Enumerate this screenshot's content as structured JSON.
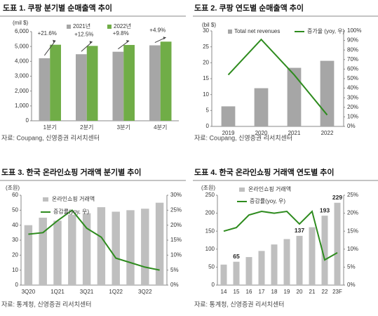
{
  "chart_data": [
    {
      "type": "bar",
      "title": "도표 1. 쿠팡 분기별 순매출액 추이",
      "source": "자료: Coupang, 신영증권 리서치센터",
      "y_label": "(mil $)",
      "legend": "top",
      "categories": [
        "1분기",
        "2분기",
        "3분기",
        "4분기"
      ],
      "series": [
        {
          "name": "2021년",
          "type": "bar",
          "color": "#a6a6a6",
          "values": [
            4207,
            4478,
            4645,
            5077
          ]
        },
        {
          "name": "2022년",
          "type": "bar",
          "color": "#70ad47",
          "values": [
            5117,
            5038,
            5101,
            5325
          ]
        }
      ],
      "annotations": [
        "+21.6%",
        "+12.5%",
        "+9.8%",
        "+4.9%"
      ],
      "ylim": [
        0,
        6000
      ],
      "yticks": [
        0,
        {
          "value": 1000,
          "label": "1,000"
        },
        {
          "value": 2000,
          "label": "2,000"
        },
        {
          "value": 3000,
          "label": "3,000"
        },
        {
          "value": 4000,
          "label": "4,000"
        },
        {
          "value": 5000,
          "label": "5,000"
        },
        {
          "value": 6000,
          "label": "6,000"
        }
      ]
    },
    {
      "type": "combo",
      "title": "도표 2. 쿠팡 연도별 순매출액 추이",
      "source": "자료: Coupang, 신영증권 리서치센터",
      "y_label": "(bil $)",
      "legend": "top",
      "categories": [
        "2019",
        "2020",
        "2021",
        "2022"
      ],
      "series": [
        {
          "name": "Total net revenues",
          "type": "bar",
          "color": "#a6a6a6",
          "values": [
            6.3,
            12.0,
            18.4,
            20.6
          ]
        },
        {
          "name": "증가율 (yoy, 우)",
          "type": "line",
          "axis": "y2",
          "color": "#2e8b1e",
          "values": [
            54,
            91,
            54,
            12
          ]
        }
      ],
      "ylim": [
        0,
        30
      ],
      "yticks": [
        0,
        5,
        10,
        15,
        20,
        25,
        30
      ],
      "y2lim": [
        0,
        100
      ],
      "y2ticks": [
        {
          "value": 0,
          "label": "0%"
        },
        {
          "value": 10,
          "label": "10%"
        },
        {
          "value": 20,
          "label": "20%"
        },
        {
          "value": 30,
          "label": "30%"
        },
        {
          "value": 40,
          "label": "40%"
        },
        {
          "value": 50,
          "label": "50%"
        },
        {
          "value": 60,
          "label": "60%"
        },
        {
          "value": 70,
          "label": "70%"
        },
        {
          "value": 80,
          "label": "80%"
        },
        {
          "value": 90,
          "label": "90%"
        },
        {
          "value": 100,
          "label": "100%"
        }
      ]
    },
    {
      "type": "combo",
      "title": "도표 3. 한국 온라인쇼핑 거래액 분기별 추이",
      "source": "자료: 통계청, 신영증권 리서치센터",
      "y_label": "(조원)",
      "legend": "top-left",
      "categories": [
        "3Q20",
        null,
        "1Q21",
        null,
        "3Q21",
        null,
        "1Q22",
        null,
        "3Q22",
        null
      ],
      "series": [
        {
          "name": "온라인쇼핑 거래액",
          "type": "bar",
          "color": "#bfbfbf",
          "values": [
            40,
            45,
            43,
            47,
            48,
            52,
            49,
            50,
            51,
            55
          ]
        },
        {
          "name": "증감률(yoy, 우)",
          "type": "line",
          "axis": "y2",
          "color": "#2e8b1e",
          "values": [
            17,
            17.5,
            21.5,
            25,
            19,
            16,
            9,
            7.5,
            6,
            5
          ]
        }
      ],
      "ylim": [
        0,
        60
      ],
      "yticks": [
        0,
        10,
        20,
        30,
        40,
        50,
        60
      ],
      "y2lim": [
        0,
        30
      ],
      "y2ticks": [
        {
          "value": 0,
          "label": "0%"
        },
        {
          "value": 5,
          "label": "5%"
        },
        {
          "value": 10,
          "label": "10%"
        },
        {
          "value": 15,
          "label": "15%"
        },
        {
          "value": 20,
          "label": "20%"
        },
        {
          "value": 25,
          "label": "25%"
        },
        {
          "value": 30,
          "label": "30%"
        }
      ]
    },
    {
      "type": "combo",
      "title": "도표 4. 한국 온라인쇼핑 거래액 연도별 추이",
      "source": "자료: 통계청, 신영증권 리서치센터",
      "y_label": "(조원)",
      "legend": "top-left",
      "categories": [
        "14",
        "15",
        "16",
        "17",
        "18",
        "19",
        "20",
        "21",
        "22",
        "23F"
      ],
      "series": [
        {
          "name": "온라인쇼핑 거래액",
          "type": "bar",
          "color": "#bfbfbf",
          "values": [
            57,
            65,
            78,
            95,
            113,
            128,
            137,
            161,
            193,
            229
          ],
          "value_labels": [
            null,
            "65",
            null,
            null,
            null,
            null,
            "137",
            null,
            "193",
            "229"
          ]
        },
        {
          "name": "증감률(yoy, 우)",
          "type": "line",
          "axis": "y2",
          "color": "#2e8b1e",
          "values": [
            15,
            16,
            19.5,
            20.5,
            20,
            20.5,
            17,
            20.5,
            7,
            9
          ]
        }
      ],
      "ylim": [
        0,
        250
      ],
      "yticks": [
        0,
        50,
        100,
        150,
        200,
        250
      ],
      "y2lim": [
        0,
        25
      ],
      "y2ticks": [
        {
          "value": 0,
          "label": "0%"
        },
        {
          "value": 5,
          "label": "5%"
        },
        {
          "value": 10,
          "label": "10%"
        },
        {
          "value": 15,
          "label": "15%"
        },
        {
          "value": 20,
          "label": "20%"
        },
        {
          "value": 25,
          "label": "25%"
        }
      ]
    }
  ]
}
